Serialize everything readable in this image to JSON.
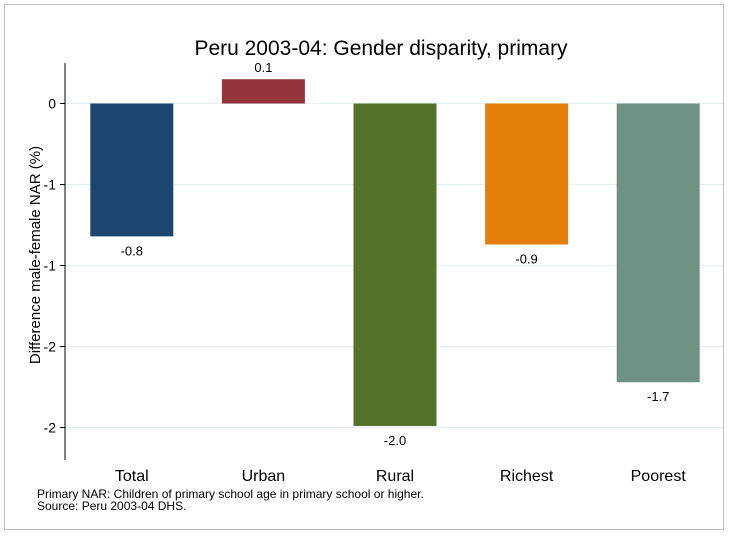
{
  "chart_data": {
    "type": "bar",
    "title": "Peru 2003-04: Gender disparity, primary",
    "xlabel": "",
    "ylabel": "Difference male-female NAR (%)",
    "categories": [
      "Total",
      "Urban",
      "Rural",
      "Richest",
      "Poorest"
    ],
    "values": [
      -0.82,
      0.15,
      -1.99,
      -0.87,
      -1.72
    ],
    "data_labels": [
      "-0.8",
      "0.1",
      "-2.0",
      "-0.9",
      "-1.7"
    ],
    "colors": [
      "#1c4670",
      "#93343b",
      "#53732d",
      "#e27f0b",
      "#6e9183"
    ],
    "ylim": [
      -2.2,
      0.25
    ],
    "y_ticks": [
      0,
      -0.5,
      -1,
      -1.5,
      -2
    ],
    "y_tick_labels": [
      "0",
      "-1",
      "-1",
      "-2",
      "-2"
    ],
    "grid": true,
    "legend": "none"
  },
  "notes": {
    "line1": "Primary NAR: Children of primary school age in primary school or higher.",
    "line2": "Source: Peru 2003-04 DHS."
  }
}
